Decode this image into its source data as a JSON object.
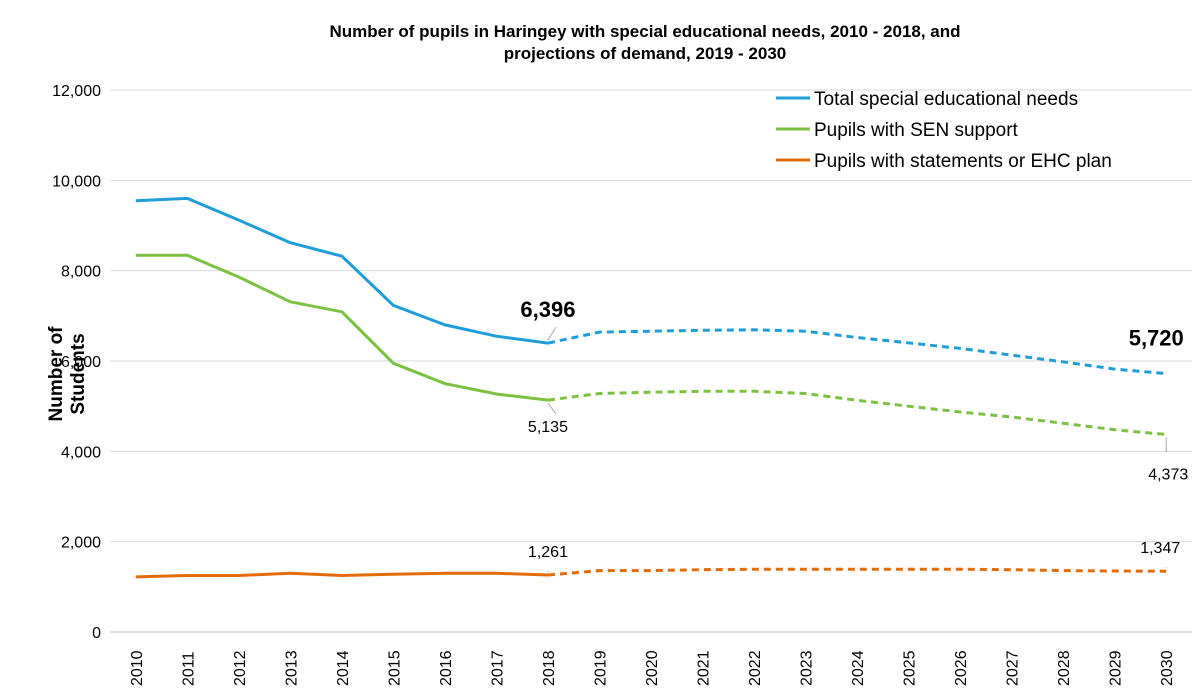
{
  "chart_data": {
    "type": "line",
    "title": "Number of pupils in Haringey with special educational needs, 2010 - 2018, and projections of demand, 2019 - 2030",
    "title_lines": [
      "Number of pupils in Haringey with special educational needs, 2010 - 2018, and",
      "projections of demand, 2019 - 2030"
    ],
    "xlabel": "",
    "ylabel": "Number of Students",
    "ylim": [
      0,
      12000
    ],
    "yticks": [
      0,
      2000,
      4000,
      6000,
      8000,
      10000,
      12000
    ],
    "ytick_labels": [
      "0",
      "2,000",
      "4,000",
      "6,000",
      "8,000",
      "10,000",
      "12,000"
    ],
    "grid": true,
    "legend_position": "top-right",
    "actual_end_year": "2018",
    "x": [
      "2010",
      "2011",
      "2012",
      "2013",
      "2014",
      "2015",
      "2016",
      "2017",
      "2018",
      "2019",
      "2020",
      "2021",
      "2022",
      "2023",
      "2024",
      "2025",
      "2026",
      "2027",
      "2028",
      "2029",
      "2030"
    ],
    "series": [
      {
        "name": "Total special educational needs",
        "color": "#1F9DD9",
        "values": [
          9550,
          9600,
          9120,
          8620,
          8320,
          7230,
          6800,
          6550,
          6396,
          6640,
          6660,
          6680,
          6690,
          6660,
          6520,
          6400,
          6280,
          6130,
          5980,
          5820,
          5720
        ]
      },
      {
        "name": "Pupils with SEN support",
        "color": "#7CC242",
        "values": [
          8340,
          8340,
          7860,
          7310,
          7090,
          5950,
          5500,
          5270,
          5135,
          5280,
          5310,
          5330,
          5330,
          5280,
          5130,
          5000,
          4870,
          4760,
          4620,
          4480,
          4373
        ]
      },
      {
        "name": "Pupils with statements or EHC plan",
        "color": "#E36C0A",
        "values": [
          1220,
          1250,
          1250,
          1300,
          1250,
          1280,
          1300,
          1300,
          1261,
          1360,
          1360,
          1380,
          1390,
          1390,
          1390,
          1390,
          1390,
          1380,
          1360,
          1350,
          1347
        ]
      }
    ],
    "annotations": [
      {
        "series": 0,
        "x": "2018",
        "text": "6,396",
        "bold": true
      },
      {
        "series": 0,
        "x": "2030",
        "text": "5,720",
        "bold": true
      },
      {
        "series": 1,
        "x": "2018",
        "text": "5,135",
        "bold": false
      },
      {
        "series": 1,
        "x": "2030",
        "text": "4,373",
        "bold": false
      },
      {
        "series": 2,
        "x": "2018",
        "text": "1,261",
        "bold": false
      },
      {
        "series": 2,
        "x": "2030",
        "text": "1,347",
        "bold": false
      }
    ]
  }
}
